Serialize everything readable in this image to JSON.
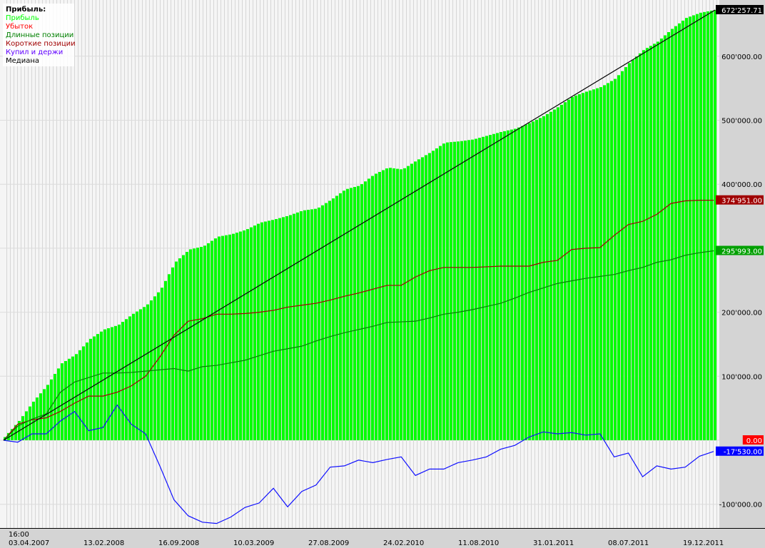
{
  "chart_data": {
    "type": "bar+line",
    "title": "Прибыль:",
    "legend": {
      "placement": "top-left",
      "entries": [
        {
          "name": "Прибыль",
          "color": "#00ff00"
        },
        {
          "name": "Убыток",
          "color": "#ff0000"
        },
        {
          "name": "Длинные позиции",
          "color": "#008000"
        },
        {
          "name": "Короткие позиции",
          "color": "#a00000"
        },
        {
          "name": "Купил и держи",
          "color": "#6000ff"
        },
        {
          "name": "Медиана",
          "color": "#000000"
        }
      ]
    },
    "x_ticks": [
      "03.04.2007",
      "13.02.2008",
      "16.09.2008",
      "10.03.2009",
      "27.08.2009",
      "24.02.2010",
      "11.08.2010",
      "31.01.2011",
      "08.07.2011",
      "19.12.2011"
    ],
    "x_time_label": "16:00",
    "y_ticks": [
      {
        "v": 600000,
        "label": "600'000.00"
      },
      {
        "v": 500000,
        "label": "500'000.00"
      },
      {
        "v": 400000,
        "label": "400'000.00"
      },
      {
        "v": 200000,
        "label": "200'000.00"
      },
      {
        "v": 100000,
        "label": "100'000.00"
      },
      {
        "v": -100000,
        "label": "-100'000.00"
      }
    ],
    "ylim": [
      -135000,
      690000
    ],
    "grid": true,
    "bar_count": 200,
    "series": [
      {
        "name": "Прибыль",
        "kind": "bar",
        "color": "#00ff00",
        "values": [
          5000,
          30000,
          60000,
          86000,
          120000,
          134000,
          158000,
          173000,
          180000,
          197000,
          211000,
          236000,
          278000,
          298000,
          303000,
          318000,
          322000,
          329000,
          340000,
          345000,
          351000,
          359000,
          362000,
          376000,
          392000,
          398000,
          415000,
          426000,
          423000,
          437000,
          450000,
          465000,
          467000,
          470000,
          476000,
          482000,
          487000,
          496000,
          507000,
          521000,
          537000,
          545000,
          552000,
          565000,
          590000,
          610000,
          623000,
          643000,
          660000,
          668000,
          672257.71
        ],
        "last_label": "672'257.71",
        "badge_color": "#000000"
      },
      {
        "name": "Короткие позиции",
        "kind": "line",
        "color": "#a00000",
        "values": [
          0,
          25000,
          32000,
          35000,
          45000,
          58000,
          69000,
          69000,
          75000,
          85000,
          100000,
          130000,
          164000,
          186000,
          190000,
          197000,
          197000,
          198000,
          200000,
          203000,
          208000,
          211000,
          214000,
          219000,
          225000,
          230000,
          236000,
          242000,
          242000,
          255000,
          265000,
          270000,
          270000,
          270000,
          271000,
          272000,
          272000,
          272000,
          278000,
          281000,
          298000,
          300000,
          301000,
          320000,
          337000,
          342000,
          353000,
          370000,
          374000,
          375000,
          374951
        ],
        "last_label": "374'951.00",
        "badge_color": "#a00000"
      },
      {
        "name": "Длинные позиции",
        "kind": "line",
        "color": "#008000",
        "values": [
          0,
          22000,
          33000,
          41000,
          75000,
          91000,
          98000,
          105000,
          105000,
          106000,
          108000,
          110000,
          112000,
          108000,
          115000,
          117000,
          121000,
          125000,
          132000,
          139000,
          143000,
          147000,
          155000,
          162000,
          168000,
          173000,
          178000,
          184000,
          185000,
          186000,
          191000,
          197000,
          200000,
          204000,
          209000,
          214000,
          222000,
          231000,
          238000,
          245000,
          249000,
          253000,
          256000,
          259000,
          265000,
          270000,
          278000,
          282000,
          289000,
          293000,
          295993
        ],
        "last_label": "295'993.00",
        "badge_color": "#00a000"
      },
      {
        "name": "Убыток",
        "kind": "line",
        "color": "#ff0000",
        "values": [
          0
        ],
        "last_label": "0.00",
        "badge_color": "#ff0000"
      },
      {
        "name": "Купил и держи",
        "kind": "line",
        "color": "#1010ff",
        "values": [
          0,
          -3000,
          10000,
          10000,
          30000,
          45000,
          15000,
          20000,
          55000,
          25000,
          10000,
          -40000,
          -93000,
          -118000,
          -128000,
          -130000,
          -120000,
          -105000,
          -98000,
          -75000,
          -104000,
          -80000,
          -70000,
          -42000,
          -40000,
          -31000,
          -35000,
          -30000,
          -26000,
          -55000,
          -45000,
          -45000,
          -35000,
          -31000,
          -26000,
          -14000,
          -8000,
          5000,
          13000,
          10000,
          12000,
          8000,
          10000,
          -26000,
          -20000,
          -57000,
          -40000,
          -45000,
          -42000,
          -25000,
          -17530
        ],
        "last_label": "-17'530.00",
        "badge_color": "#0000ff"
      },
      {
        "name": "Медиана",
        "kind": "line",
        "color": "#000000",
        "values": [
          0,
          672257.71
        ]
      }
    ]
  }
}
